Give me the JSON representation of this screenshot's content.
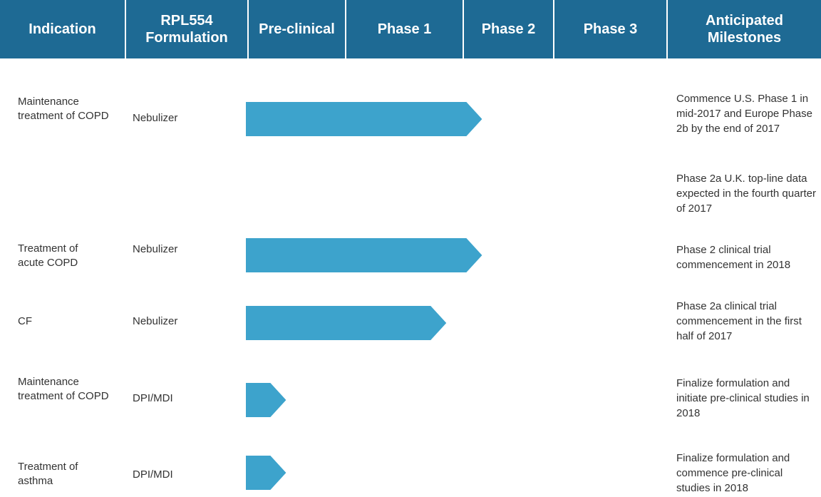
{
  "colors": {
    "header_bg": "#1e6a94",
    "arrow": "#3da3cc",
    "divider": "#ffffff"
  },
  "header": {
    "columns": [
      {
        "label": "Indication"
      },
      {
        "label": "RPL554 Formulation"
      },
      {
        "label": "Pre-clinical"
      },
      {
        "label": "Phase 1"
      },
      {
        "label": "Phase 2"
      },
      {
        "label": "Phase 3"
      },
      {
        "label": "Anticipated Milestones"
      }
    ]
  },
  "chart_data": {
    "type": "bar",
    "orientation": "horizontal",
    "stages": [
      "Pre-clinical",
      "Phase 1",
      "Phase 2",
      "Phase 3"
    ],
    "rows": [
      {
        "indication": "Maintenance treatment of COPD",
        "formulation": "Nebulizer",
        "progress_stage": 2.2,
        "milestones": [
          "Commence U.S. Phase 1 in mid-2017 and Europe Phase 2b by the end of 2017",
          "Phase 2a U.K. top-line data expected in the fourth quarter of 2017"
        ]
      },
      {
        "indication": "Treatment of acute COPD",
        "formulation": "Nebulizer",
        "progress_stage": 2.2,
        "milestones": [
          "Phase 2 clinical trial commencement in 2018"
        ]
      },
      {
        "indication": "CF",
        "formulation": "Nebulizer",
        "progress_stage": 1.85,
        "milestones": [
          "Phase 2a clinical trial commencement in the first half of 2017"
        ]
      },
      {
        "indication": "Maintenance treatment of COPD",
        "formulation": "DPI/MDI",
        "progress_stage": 0.4,
        "milestones": [
          "Finalize formulation and initiate pre-clinical studies in 2018"
        ]
      },
      {
        "indication": "Treatment of asthma",
        "formulation": "DPI/MDI",
        "progress_stage": 0.4,
        "milestones": [
          "Finalize formulation and commence pre-clinical studies in 2018"
        ]
      }
    ]
  }
}
